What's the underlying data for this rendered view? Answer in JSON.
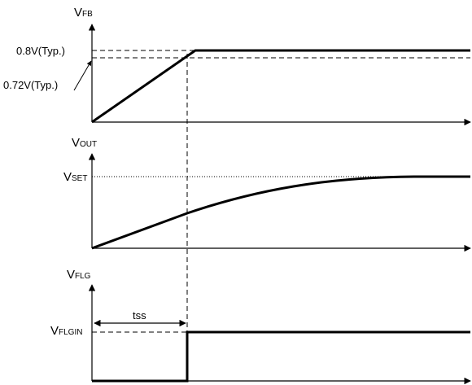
{
  "fb_panel": {
    "axis_main": "V",
    "axis_sub": "FB",
    "level_high": "0.8V(Typ.)",
    "level_low": "0.72V(Typ.)"
  },
  "out_panel": {
    "axis_main": "V",
    "axis_sub": "OUT",
    "level_main": "V",
    "level_sub": "SET"
  },
  "flg_panel": {
    "axis_main": "V",
    "axis_sub": "FLG",
    "level_main": "V",
    "level_sub": "FLGIN",
    "interval_label": "tss"
  },
  "colors": {
    "line": "#000000",
    "background": "#ffffff"
  }
}
